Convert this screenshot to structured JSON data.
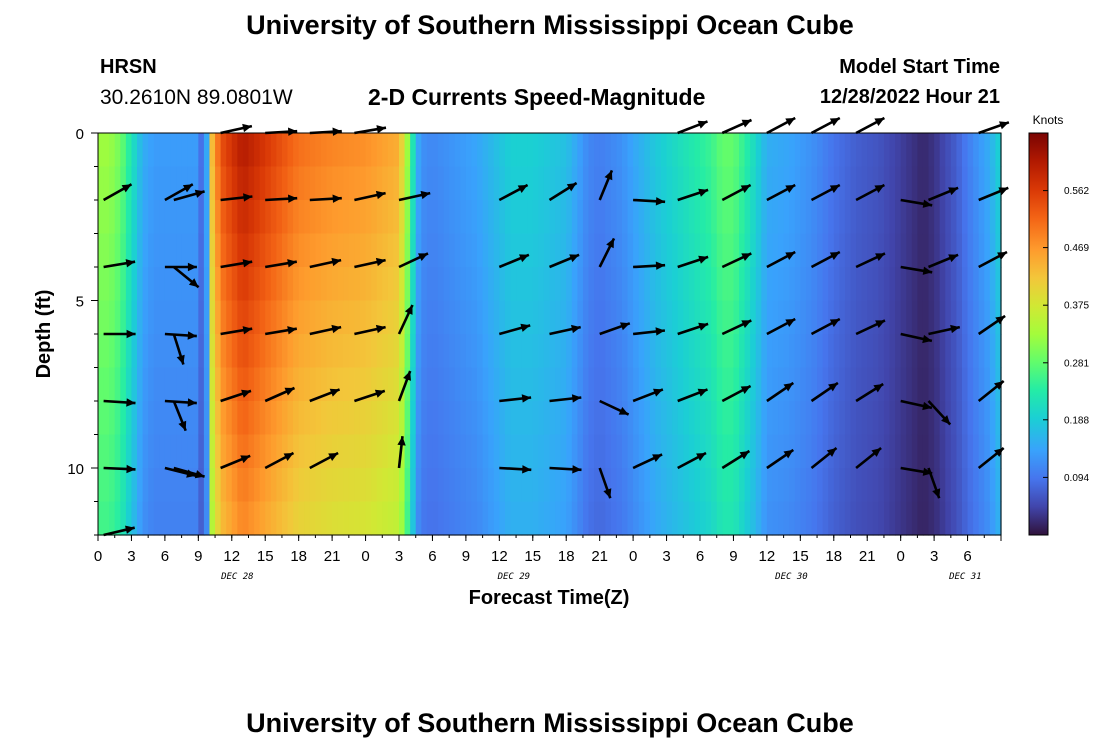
{
  "header": {
    "title": "University of Southern Mississippi Ocean Cube",
    "station": "HRSN",
    "coords": "30.2610N  89.0801W",
    "subtitle": "2-D Currents Speed-Magnitude",
    "start_label": "Model Start Time",
    "start_value": "12/28/2022 Hour 21",
    "footer_title": "University of Southern Mississippi Ocean Cube"
  },
  "chart_data": {
    "type": "heatmap",
    "title": "2-D Currents Speed-Magnitude",
    "xlabel": "Forecast Time(Z)",
    "ylabel": "Depth (ft)",
    "xlim": [
      0,
      81
    ],
    "ylim": [
      12,
      0
    ],
    "x_ticks": [
      0,
      3,
      6,
      9,
      12,
      15,
      18,
      21,
      24,
      27,
      30,
      33,
      36,
      39,
      42,
      45,
      48,
      51,
      54,
      57,
      60,
      63,
      66,
      69,
      72,
      75,
      78,
      81
    ],
    "x_tick_labels": [
      "0",
      "3",
      "6",
      "9",
      "12",
      "15",
      "18",
      "21",
      "0",
      "3",
      "6",
      "9",
      "12",
      "15",
      "18",
      "21",
      "0",
      "3",
      "6",
      "9",
      "12",
      "15",
      "18",
      "21",
      "0",
      "3",
      "6"
    ],
    "x_tick_label_hours": [
      0,
      3,
      6,
      9,
      12,
      15,
      18,
      21,
      24,
      27,
      30,
      33,
      36,
      39,
      42,
      45,
      48,
      51,
      54,
      57,
      60,
      63,
      66,
      69,
      72,
      75,
      78
    ],
    "y_ticks": [
      0,
      5,
      10
    ],
    "y_tick_labels": [
      "0",
      "5",
      "10"
    ],
    "date_labels": [
      {
        "text": "DEC 28",
        "hour": 12.5
      },
      {
        "text": "DEC 29",
        "hour": 37.3
      },
      {
        "text": "DEC 30",
        "hour": 62.2
      },
      {
        "text": "DEC 31",
        "hour": 77.8
      }
    ],
    "colorbar": {
      "title": "Knots",
      "min": 0,
      "max": 0.656,
      "ticks": [
        0.094,
        0.188,
        0.281,
        0.375,
        0.469,
        0.562
      ],
      "tick_labels": [
        "0.094",
        "0.188",
        "0.281",
        "0.375",
        "0.469",
        "0.562"
      ]
    },
    "speed_profile": {
      "hours": [
        0,
        1,
        2,
        3,
        4,
        5,
        9,
        9.3,
        9.8,
        10.2,
        11,
        13,
        15,
        18,
        21,
        24,
        27,
        28,
        28.5,
        29,
        30,
        34,
        37,
        39,
        42,
        44,
        45,
        47,
        50,
        55,
        56,
        57,
        59,
        60,
        62,
        64,
        66,
        68,
        70,
        72,
        73,
        74,
        75,
        76,
        77,
        78,
        80,
        81
      ],
      "values": [
        0.32,
        0.32,
        0.29,
        0.22,
        0.15,
        0.13,
        0.13,
        0.08,
        0.15,
        0.42,
        0.53,
        0.6,
        0.56,
        0.5,
        0.48,
        0.47,
        0.44,
        0.28,
        0.16,
        0.12,
        0.11,
        0.14,
        0.19,
        0.19,
        0.17,
        0.11,
        0.1,
        0.12,
        0.18,
        0.25,
        0.28,
        0.28,
        0.2,
        0.15,
        0.14,
        0.12,
        0.09,
        0.07,
        0.06,
        0.04,
        0.03,
        0.02,
        0.03,
        0.05,
        0.07,
        0.1,
        0.15,
        0.2
      ]
    },
    "arrow_depths": [
      0,
      2,
      4,
      6,
      8,
      10,
      12
    ],
    "arrows": [
      {
        "hour": 0.5,
        "vectors": [
          [
            0,
            0
          ],
          [
            0.8,
            0.45
          ],
          [
            0.9,
            0.15
          ],
          [
            0.9,
            0
          ],
          [
            0.9,
            -0.06
          ],
          [
            0.9,
            -0.04
          ],
          [
            0.85,
            0.2
          ]
        ]
      },
      {
        "hour": 6,
        "vectors": [
          [
            0,
            0
          ],
          [
            0.8,
            0.45
          ],
          [
            0.9,
            0.0
          ],
          [
            0.9,
            -0.06
          ],
          [
            0.9,
            -0.06
          ],
          [
            0.8,
            -0.2
          ],
          [
            0,
            0
          ]
        ]
      },
      {
        "hour": 6.8,
        "vectors": [
          [
            0,
            0
          ],
          [
            0.9,
            0.25
          ],
          [
            0.55,
            -0.45
          ],
          [
            0.25,
            -0.8
          ],
          [
            0.3,
            -0.75
          ],
          [
            0.9,
            -0.25
          ],
          [
            0,
            0
          ]
        ]
      },
      {
        "hour": 11,
        "vectors": [
          [
            0.9,
            0.2
          ],
          [
            0.9,
            0.1
          ],
          [
            0.9,
            0.15
          ],
          [
            0.9,
            0.15
          ],
          [
            0.9,
            0.3
          ],
          [
            0.85,
            0.35
          ],
          [
            0,
            0
          ]
        ]
      },
      {
        "hour": 15,
        "vectors": [
          [
            0.9,
            0.05
          ],
          [
            0.9,
            0.05
          ],
          [
            0.9,
            0.15
          ],
          [
            0.9,
            0.15
          ],
          [
            0.9,
            0.4
          ],
          [
            0.85,
            0.45
          ],
          [
            0,
            0
          ]
        ]
      },
      {
        "hour": 19,
        "vectors": [
          [
            0.9,
            0.05
          ],
          [
            0.9,
            0.05
          ],
          [
            0.9,
            0.2
          ],
          [
            0.9,
            0.2
          ],
          [
            0.9,
            0.35
          ],
          [
            0.85,
            0.45
          ],
          [
            0,
            0
          ]
        ]
      },
      {
        "hour": 23,
        "vectors": [
          [
            0.9,
            0.15
          ],
          [
            0.9,
            0.2
          ],
          [
            0.9,
            0.2
          ],
          [
            0.9,
            0.2
          ],
          [
            0.9,
            0.3
          ],
          [
            0,
            0
          ],
          [
            0,
            0
          ]
        ]
      },
      {
        "hour": 27,
        "vectors": [
          [
            0,
            0
          ],
          [
            0.9,
            0.2
          ],
          [
            0.85,
            0.4
          ],
          [
            0.35,
            0.75
          ],
          [
            0.3,
            0.8
          ],
          [
            0.1,
            0.9
          ],
          [
            0,
            0
          ]
        ]
      },
      {
        "hour": 36,
        "vectors": [
          [
            0,
            0
          ],
          [
            0.85,
            0.45
          ],
          [
            0.85,
            0.35
          ],
          [
            0.9,
            0.25
          ],
          [
            0.9,
            0.1
          ],
          [
            0.9,
            -0.05
          ],
          [
            0,
            0
          ]
        ]
      },
      {
        "hour": 40.5,
        "vectors": [
          [
            0,
            0
          ],
          [
            0.8,
            0.5
          ],
          [
            0.85,
            0.35
          ],
          [
            0.9,
            0.2
          ],
          [
            0.9,
            0.1
          ],
          [
            0.9,
            -0.05
          ],
          [
            0,
            0
          ]
        ]
      },
      {
        "hour": 45,
        "vectors": [
          [
            0,
            0
          ],
          [
            0.35,
            0.85
          ],
          [
            0.4,
            0.8
          ],
          [
            0.85,
            0.3
          ],
          [
            0.85,
            -0.4
          ],
          [
            0.3,
            -0.85
          ],
          [
            0,
            0
          ]
        ]
      },
      {
        "hour": 48,
        "vectors": [
          [
            0,
            0
          ],
          [
            0.9,
            -0.05
          ],
          [
            0.9,
            0.05
          ],
          [
            0.9,
            0.1
          ],
          [
            0.9,
            0.35
          ],
          [
            0.85,
            0.4
          ],
          [
            0,
            0
          ]
        ]
      },
      {
        "hour": 52,
        "vectors": [
          [
            0.9,
            0.35
          ],
          [
            0.9,
            0.3
          ],
          [
            0.9,
            0.3
          ],
          [
            0.9,
            0.3
          ],
          [
            0.9,
            0.35
          ],
          [
            0.85,
            0.45
          ],
          [
            0,
            0
          ]
        ]
      },
      {
        "hour": 56,
        "vectors": [
          [
            0.9,
            0.4
          ],
          [
            0.85,
            0.45
          ],
          [
            0.85,
            0.4
          ],
          [
            0.85,
            0.4
          ],
          [
            0.85,
            0.45
          ],
          [
            0.8,
            0.5
          ],
          [
            0,
            0
          ]
        ]
      },
      {
        "hour": 60,
        "vectors": [
          [
            0.85,
            0.45
          ],
          [
            0.85,
            0.45
          ],
          [
            0.85,
            0.45
          ],
          [
            0.85,
            0.45
          ],
          [
            0.8,
            0.55
          ],
          [
            0.8,
            0.55
          ],
          [
            0,
            0
          ]
        ]
      },
      {
        "hour": 64,
        "vectors": [
          [
            0.85,
            0.45
          ],
          [
            0.85,
            0.45
          ],
          [
            0.85,
            0.45
          ],
          [
            0.85,
            0.45
          ],
          [
            0.8,
            0.55
          ],
          [
            0.75,
            0.6
          ],
          [
            0,
            0
          ]
        ]
      },
      {
        "hour": 68,
        "vectors": [
          [
            0.85,
            0.45
          ],
          [
            0.85,
            0.45
          ],
          [
            0.85,
            0.4
          ],
          [
            0.85,
            0.4
          ],
          [
            0.8,
            0.5
          ],
          [
            0.75,
            0.6
          ],
          [
            0,
            0
          ]
        ]
      },
      {
        "hour": 72,
        "vectors": [
          [
            0,
            0
          ],
          [
            0.9,
            -0.15
          ],
          [
            0.9,
            -0.15
          ],
          [
            0.9,
            -0.2
          ],
          [
            0.9,
            -0.2
          ],
          [
            0.9,
            -0.15
          ],
          [
            0,
            0
          ]
        ]
      },
      {
        "hour": 74.5,
        "vectors": [
          [
            0,
            0
          ],
          [
            0.85,
            0.35
          ],
          [
            0.85,
            0.35
          ],
          [
            0.9,
            0.2
          ],
          [
            0.6,
            -0.65
          ],
          [
            0.3,
            -0.85
          ],
          [
            0,
            0
          ]
        ]
      },
      {
        "hour": 79,
        "vectors": [
          [
            0.85,
            0.3
          ],
          [
            0.85,
            0.35
          ],
          [
            0.85,
            0.45
          ],
          [
            0.8,
            0.55
          ],
          [
            0.75,
            0.6
          ],
          [
            0.75,
            0.6
          ],
          [
            0,
            0
          ]
        ]
      }
    ]
  }
}
